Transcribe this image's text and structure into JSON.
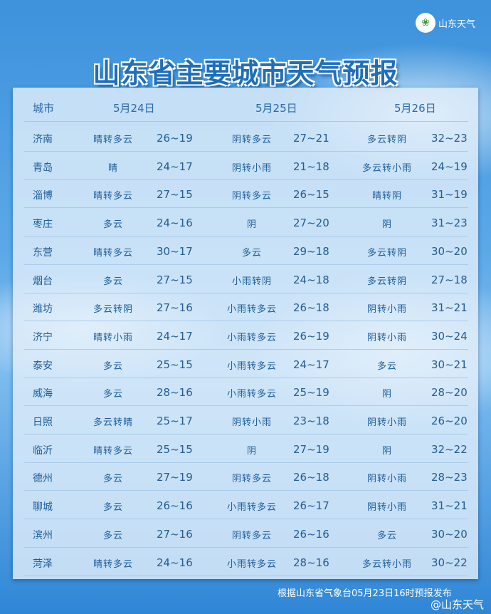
{
  "brand": {
    "name": "山东天气",
    "logo_icon": "shandong-weather-logo"
  },
  "title": "山东省主要城市天气预报",
  "header": {
    "city": "城市",
    "day1": "5月24日",
    "day2": "5月25日",
    "day3": "5月26日"
  },
  "rows": [
    {
      "city": "济南",
      "w1": "晴转多云",
      "t1": "26~19",
      "w2": "阴转多云",
      "t2": "27~21",
      "w3": "多云转阴",
      "t3": "32~23"
    },
    {
      "city": "青岛",
      "w1": "晴",
      "t1": "24~17",
      "w2": "阴转小雨",
      "t2": "21~18",
      "w3": "多云转小雨",
      "t3": "24~19"
    },
    {
      "city": "淄博",
      "w1": "晴转多云",
      "t1": "27~15",
      "w2": "阴转多云",
      "t2": "26~15",
      "w3": "晴转阴",
      "t3": "31~19"
    },
    {
      "city": "枣庄",
      "w1": "多云",
      "t1": "24~16",
      "w2": "阴",
      "t2": "27~20",
      "w3": "阴",
      "t3": "31~23"
    },
    {
      "city": "东营",
      "w1": "晴转多云",
      "t1": "30~17",
      "w2": "多云",
      "t2": "29~18",
      "w3": "多云转阴",
      "t3": "30~20"
    },
    {
      "city": "烟台",
      "w1": "多云",
      "t1": "27~15",
      "w2": "小雨转阴",
      "t2": "24~18",
      "w3": "多云转阴",
      "t3": "27~18"
    },
    {
      "city": "潍坊",
      "w1": "多云转阴",
      "t1": "27~16",
      "w2": "小雨转多云",
      "t2": "26~18",
      "w3": "阴转小雨",
      "t3": "31~21"
    },
    {
      "city": "济宁",
      "w1": "晴转小雨",
      "t1": "24~17",
      "w2": "小雨转多云",
      "t2": "26~19",
      "w3": "阴转小雨",
      "t3": "30~24"
    },
    {
      "city": "泰安",
      "w1": "多云",
      "t1": "25~15",
      "w2": "小雨转多云",
      "t2": "24~17",
      "w3": "多云",
      "t3": "30~21"
    },
    {
      "city": "威海",
      "w1": "多云",
      "t1": "28~16",
      "w2": "小雨转多云",
      "t2": "25~19",
      "w3": "阴",
      "t3": "28~20"
    },
    {
      "city": "日照",
      "w1": "多云转晴",
      "t1": "25~17",
      "w2": "阴转小雨",
      "t2": "23~18",
      "w3": "阴转小雨",
      "t3": "26~20"
    },
    {
      "city": "临沂",
      "w1": "晴转多云",
      "t1": "25~15",
      "w2": "阴",
      "t2": "27~19",
      "w3": "阴",
      "t3": "32~22"
    },
    {
      "city": "德州",
      "w1": "多云",
      "t1": "27~19",
      "w2": "阴转多云",
      "t2": "26~18",
      "w3": "阴转小雨",
      "t3": "28~23"
    },
    {
      "city": "聊城",
      "w1": "多云",
      "t1": "26~16",
      "w2": "小雨转多云",
      "t2": "26~17",
      "w3": "阴转小雨",
      "t3": "31~21"
    },
    {
      "city": "滨州",
      "w1": "多云",
      "t1": "27~16",
      "w2": "阴转多云",
      "t2": "26~16",
      "w3": "多云",
      "t3": "30~20"
    },
    {
      "city": "菏泽",
      "w1": "晴转多云",
      "t1": "24~16",
      "w2": "小雨转多云",
      "t2": "28~16",
      "w3": "多云转小雨",
      "t3": "30~22"
    }
  ],
  "footer": "根据山东省气象台05月23日16时预报发布",
  "watermark": "@山东天气"
}
